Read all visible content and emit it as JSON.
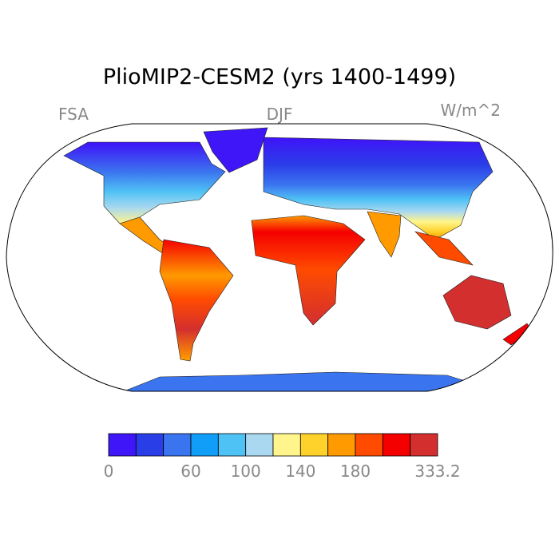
{
  "map": {
    "title": "PlioMIP2-CESM2 (yrs 1400-1499)",
    "left_label": "FSA",
    "center_label": "DJF",
    "right_label": "W/m^2",
    "colorbar": {
      "colors": [
        "#3f16f8",
        "#2a3ee8",
        "#3b74ef",
        "#119ef9",
        "#4fc2f5",
        "#a9d8f0",
        "#fff58c",
        "#ffd12b",
        "#ff9a00",
        "#ff4b00",
        "#f50000",
        "#d42f2f"
      ],
      "labels": [
        "0",
        "60",
        "100",
        "140",
        "180",
        "333.2"
      ]
    }
  }
}
